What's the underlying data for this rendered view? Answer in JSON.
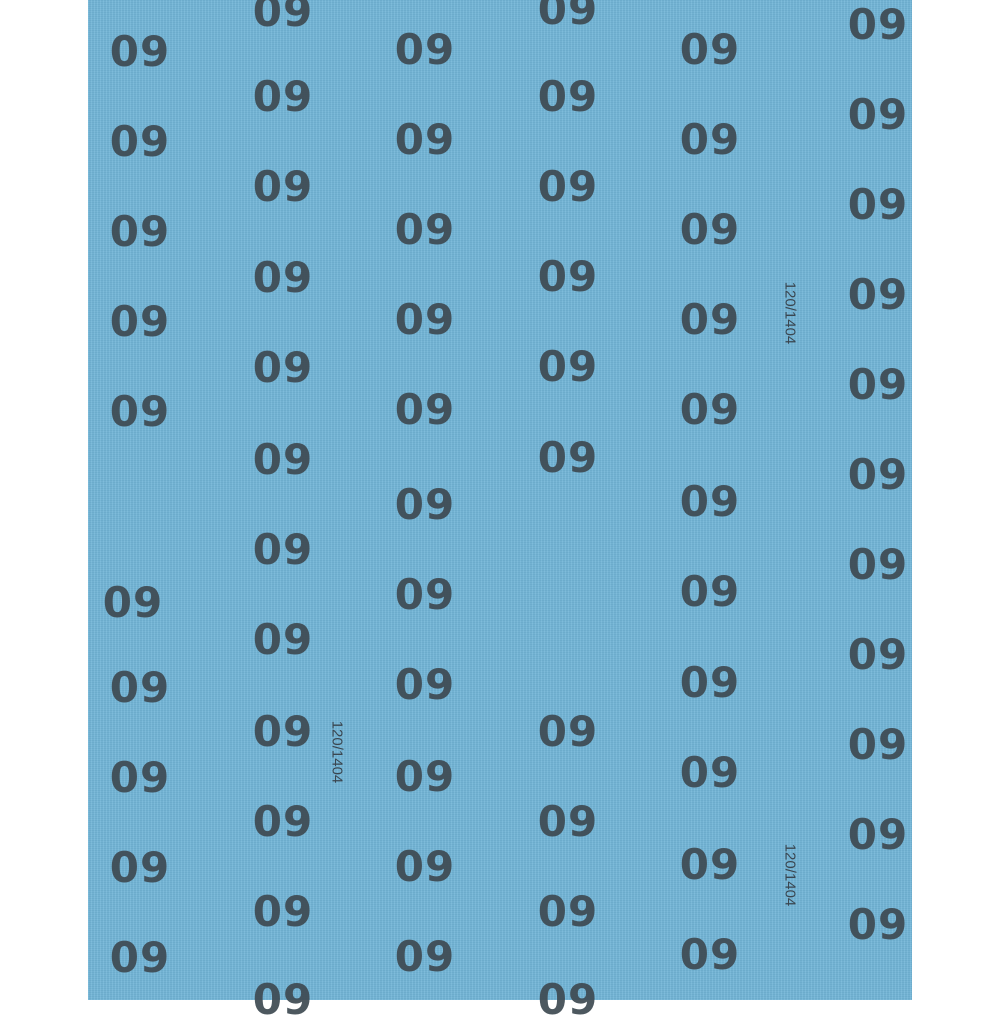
{
  "print_text": "09",
  "grade_code": "120/1404",
  "colors": {
    "paper": "#72b5d7",
    "ink": "#3e4a52",
    "background": "#ffffff"
  }
}
